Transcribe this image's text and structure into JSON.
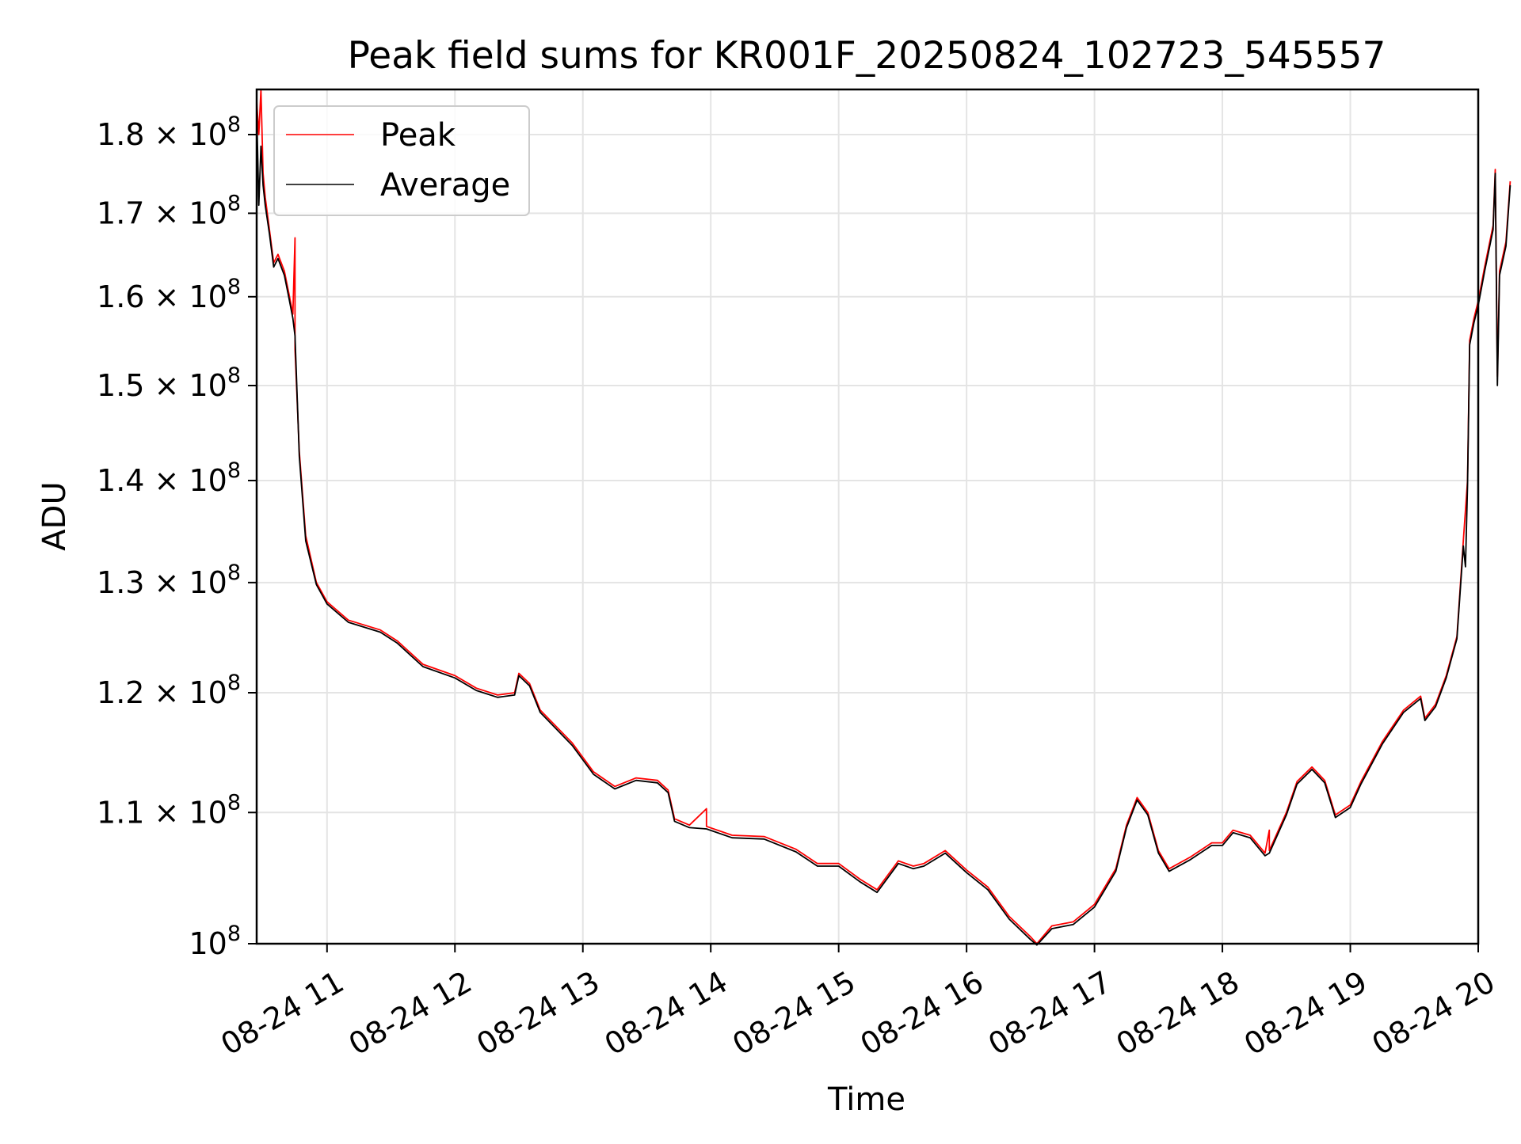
{
  "chart_data": {
    "type": "line",
    "title": "Peak field sums for KR001F_20250824_102723_545557",
    "xlabel": "Time",
    "ylabel": "ADU",
    "yscale": "log",
    "xlim": [
      "08-24 10:27",
      "08-24 20:00"
    ],
    "ylim": [
      100000000,
      186000000
    ],
    "grid": true,
    "legend_position": "top-left",
    "x_ticks": [
      {
        "t": "08-24 11:00",
        "label": "08-24 11"
      },
      {
        "t": "08-24 12:00",
        "label": "08-24 12"
      },
      {
        "t": "08-24 13:00",
        "label": "08-24 13"
      },
      {
        "t": "08-24 14:00",
        "label": "08-24 14"
      },
      {
        "t": "08-24 15:00",
        "label": "08-24 15"
      },
      {
        "t": "08-24 16:00",
        "label": "08-24 16"
      },
      {
        "t": "08-24 17:00",
        "label": "08-24 17"
      },
      {
        "t": "08-24 18:00",
        "label": "08-24 18"
      },
      {
        "t": "08-24 19:00",
        "label": "08-24 19"
      },
      {
        "t": "08-24 20:00",
        "label": "08-24 20"
      }
    ],
    "y_ticks": [
      {
        "v": 100000000,
        "mant": "",
        "exp": "8"
      },
      {
        "v": 110000000,
        "mant": "1.1",
        "exp": "8"
      },
      {
        "v": 120000000,
        "mant": "1.2",
        "exp": "8"
      },
      {
        "v": 130000000,
        "mant": "1.3",
        "exp": "8"
      },
      {
        "v": 140000000,
        "mant": "1.4",
        "exp": "8"
      },
      {
        "v": 150000000,
        "mant": "1.5",
        "exp": "8"
      },
      {
        "v": 160000000,
        "mant": "1.6",
        "exp": "8"
      },
      {
        "v": 170000000,
        "mant": "1.7",
        "exp": "8"
      },
      {
        "v": 180000000,
        "mant": "1.8",
        "exp": "8"
      }
    ],
    "series": [
      {
        "name": "Peak",
        "color": "#ff0000",
        "points": [
          [
            "08-24 10:27",
            184500000
          ],
          [
            "08-24 10:28",
            180000000
          ],
          [
            "08-24 10:29",
            186000000
          ],
          [
            "08-24 10:30",
            175000000
          ],
          [
            "08-24 10:31",
            172000000
          ],
          [
            "08-24 10:33",
            168000000
          ],
          [
            "08-24 10:35",
            164000000
          ],
          [
            "08-24 10:37",
            165000000
          ],
          [
            "08-24 10:40",
            163000000
          ],
          [
            "08-24 10:42",
            160500000
          ],
          [
            "08-24 10:44",
            158000000
          ],
          [
            "08-24 10:45",
            167000000
          ],
          [
            "08-24 10:45",
            154000000
          ],
          [
            "08-24 10:47",
            143000000
          ],
          [
            "08-24 10:50",
            134500000
          ],
          [
            "08-24 10:55",
            130000000
          ],
          [
            "08-24 11:00",
            128200000
          ],
          [
            "08-24 11:10",
            126500000
          ],
          [
            "08-24 11:25",
            125600000
          ],
          [
            "08-24 11:33",
            124600000
          ],
          [
            "08-24 11:45",
            122500000
          ],
          [
            "08-24 12:00",
            121500000
          ],
          [
            "08-24 12:10",
            120400000
          ],
          [
            "08-24 12:20",
            119800000
          ],
          [
            "08-24 12:28",
            120000000
          ],
          [
            "08-24 12:30",
            121700000
          ],
          [
            "08-24 12:35",
            120800000
          ],
          [
            "08-24 12:40",
            118500000
          ],
          [
            "08-24 12:55",
            115700000
          ],
          [
            "08-24 13:05",
            113300000
          ],
          [
            "08-24 13:15",
            112100000
          ],
          [
            "08-24 13:25",
            112800000
          ],
          [
            "08-24 13:35",
            112600000
          ],
          [
            "08-24 13:40",
            111800000
          ],
          [
            "08-24 13:43",
            109500000
          ],
          [
            "08-24 13:50",
            109000000
          ],
          [
            "08-24 13:58",
            110300000
          ],
          [
            "08-24 13:58",
            108900000
          ],
          [
            "08-24 14:10",
            108200000
          ],
          [
            "08-24 14:25",
            108100000
          ],
          [
            "08-24 14:40",
            107100000
          ],
          [
            "08-24 14:50",
            106000000
          ],
          [
            "08-24 15:00",
            106000000
          ],
          [
            "08-24 15:10",
            104800000
          ],
          [
            "08-24 15:18",
            104000000
          ],
          [
            "08-24 15:28",
            106200000
          ],
          [
            "08-24 15:35",
            105800000
          ],
          [
            "08-24 15:40",
            106000000
          ],
          [
            "08-24 15:50",
            107000000
          ],
          [
            "08-24 16:00",
            105500000
          ],
          [
            "08-24 16:10",
            104200000
          ],
          [
            "08-24 16:20",
            102000000
          ],
          [
            "08-24 16:30",
            100500000
          ],
          [
            "08-24 16:33",
            100000000
          ],
          [
            "08-24 16:40",
            101300000
          ],
          [
            "08-24 16:50",
            101600000
          ],
          [
            "08-24 17:00",
            102900000
          ],
          [
            "08-24 17:10",
            105600000
          ],
          [
            "08-24 17:15",
            109000000
          ],
          [
            "08-24 17:20",
            111200000
          ],
          [
            "08-24 17:25",
            110000000
          ],
          [
            "08-24 17:30",
            107000000
          ],
          [
            "08-24 17:35",
            105600000
          ],
          [
            "08-24 17:45",
            106500000
          ],
          [
            "08-24 17:55",
            107600000
          ],
          [
            "08-24 18:00",
            107600000
          ],
          [
            "08-24 18:05",
            108600000
          ],
          [
            "08-24 18:13",
            108200000
          ],
          [
            "08-24 18:20",
            106800000
          ],
          [
            "08-24 18:22",
            108600000
          ],
          [
            "08-24 18:22",
            107000000
          ],
          [
            "08-24 18:30",
            110000000
          ],
          [
            "08-24 18:35",
            112500000
          ],
          [
            "08-24 18:42",
            113700000
          ],
          [
            "08-24 18:48",
            112600000
          ],
          [
            "08-24 18:53",
            109800000
          ],
          [
            "08-24 19:00",
            110600000
          ],
          [
            "08-24 19:05",
            112500000
          ],
          [
            "08-24 19:15",
            115800000
          ],
          [
            "08-24 19:25",
            118500000
          ],
          [
            "08-24 19:33",
            119700000
          ],
          [
            "08-24 19:35",
            117800000
          ],
          [
            "08-24 19:40",
            119000000
          ],
          [
            "08-24 19:45",
            121500000
          ],
          [
            "08-24 19:50",
            125000000
          ],
          [
            "08-24 19:53",
            134000000
          ],
          [
            "08-24 19:55",
            140000000
          ],
          [
            "08-24 19:56",
            155000000
          ],
          [
            "08-24 19:58",
            157500000
          ],
          [
            "08-24 20:00",
            159500000
          ],
          [
            "08-24 20:03",
            163500000
          ],
          [
            "08-24 20:07",
            168500000
          ],
          [
            "08-24 20:08",
            175500000
          ],
          [
            "08-24 20:09",
            151000000
          ],
          [
            "08-24 20:10",
            163000000
          ],
          [
            "08-24 20:13",
            166500000
          ],
          [
            "08-24 20:15",
            174000000
          ]
        ]
      },
      {
        "name": "Average",
        "color": "#000000",
        "points": [
          [
            "08-24 10:27",
            183500000
          ],
          [
            "08-24 10:28",
            171000000
          ],
          [
            "08-24 10:29",
            178500000
          ],
          [
            "08-24 10:30",
            173500000
          ],
          [
            "08-24 10:31",
            171000000
          ],
          [
            "08-24 10:33",
            167500000
          ],
          [
            "08-24 10:35",
            163500000
          ],
          [
            "08-24 10:37",
            164500000
          ],
          [
            "08-24 10:40",
            162500000
          ],
          [
            "08-24 10:42",
            160000000
          ],
          [
            "08-24 10:44",
            157500000
          ],
          [
            "08-24 10:45",
            155500000
          ],
          [
            "08-24 10:47",
            142500000
          ],
          [
            "08-24 10:50",
            134000000
          ],
          [
            "08-24 10:55",
            129800000
          ],
          [
            "08-24 11:00",
            128000000
          ],
          [
            "08-24 11:10",
            126300000
          ],
          [
            "08-24 11:25",
            125400000
          ],
          [
            "08-24 11:33",
            124400000
          ],
          [
            "08-24 11:45",
            122300000
          ],
          [
            "08-24 12:00",
            121300000
          ],
          [
            "08-24 12:10",
            120200000
          ],
          [
            "08-24 12:20",
            119600000
          ],
          [
            "08-24 12:28",
            119800000
          ],
          [
            "08-24 12:30",
            121500000
          ],
          [
            "08-24 12:35",
            120600000
          ],
          [
            "08-24 12:40",
            118300000
          ],
          [
            "08-24 12:55",
            115500000
          ],
          [
            "08-24 13:05",
            113100000
          ],
          [
            "08-24 13:15",
            111900000
          ],
          [
            "08-24 13:25",
            112600000
          ],
          [
            "08-24 13:35",
            112400000
          ],
          [
            "08-24 13:40",
            111600000
          ],
          [
            "08-24 13:43",
            109300000
          ],
          [
            "08-24 13:50",
            108800000
          ],
          [
            "08-24 13:58",
            108700000
          ],
          [
            "08-24 14:10",
            108000000
          ],
          [
            "08-24 14:25",
            107900000
          ],
          [
            "08-24 14:40",
            106900000
          ],
          [
            "08-24 14:50",
            105800000
          ],
          [
            "08-24 15:00",
            105800000
          ],
          [
            "08-24 15:10",
            104600000
          ],
          [
            "08-24 15:18",
            103800000
          ],
          [
            "08-24 15:28",
            106000000
          ],
          [
            "08-24 15:35",
            105600000
          ],
          [
            "08-24 15:40",
            105800000
          ],
          [
            "08-24 15:50",
            106800000
          ],
          [
            "08-24 16:00",
            105300000
          ],
          [
            "08-24 16:10",
            104000000
          ],
          [
            "08-24 16:20",
            101800000
          ],
          [
            "08-24 16:30",
            100300000
          ],
          [
            "08-24 16:33",
            99900000
          ],
          [
            "08-24 16:40",
            101100000
          ],
          [
            "08-24 16:50",
            101400000
          ],
          [
            "08-24 17:00",
            102700000
          ],
          [
            "08-24 17:10",
            105400000
          ],
          [
            "08-24 17:15",
            108800000
          ],
          [
            "08-24 17:20",
            111000000
          ],
          [
            "08-24 17:25",
            109800000
          ],
          [
            "08-24 17:30",
            106800000
          ],
          [
            "08-24 17:35",
            105400000
          ],
          [
            "08-24 17:45",
            106300000
          ],
          [
            "08-24 17:55",
            107400000
          ],
          [
            "08-24 18:00",
            107400000
          ],
          [
            "08-24 18:05",
            108400000
          ],
          [
            "08-24 18:13",
            108000000
          ],
          [
            "08-24 18:20",
            106600000
          ],
          [
            "08-24 18:22",
            106800000
          ],
          [
            "08-24 18:30",
            109800000
          ],
          [
            "08-24 18:35",
            112300000
          ],
          [
            "08-24 18:42",
            113500000
          ],
          [
            "08-24 18:48",
            112400000
          ],
          [
            "08-24 18:53",
            109600000
          ],
          [
            "08-24 19:00",
            110400000
          ],
          [
            "08-24 19:05",
            112300000
          ],
          [
            "08-24 19:15",
            115600000
          ],
          [
            "08-24 19:25",
            118300000
          ],
          [
            "08-24 19:33",
            119500000
          ],
          [
            "08-24 19:35",
            117600000
          ],
          [
            "08-24 19:40",
            118800000
          ],
          [
            "08-24 19:45",
            121300000
          ],
          [
            "08-24 19:50",
            124800000
          ],
          [
            "08-24 19:53",
            133500000
          ],
          [
            "08-24 19:54",
            131500000
          ],
          [
            "08-24 19:55",
            139500000
          ],
          [
            "08-24 19:56",
            154500000
          ],
          [
            "08-24 19:58",
            157000000
          ],
          [
            "08-24 20:00",
            159000000
          ],
          [
            "08-24 20:03",
            163000000
          ],
          [
            "08-24 20:07",
            168000000
          ],
          [
            "08-24 20:08",
            175000000
          ],
          [
            "08-24 20:09",
            150000000
          ],
          [
            "08-24 20:10",
            162500000
          ],
          [
            "08-24 20:13",
            166000000
          ],
          [
            "08-24 20:15",
            173500000
          ]
        ]
      }
    ]
  }
}
